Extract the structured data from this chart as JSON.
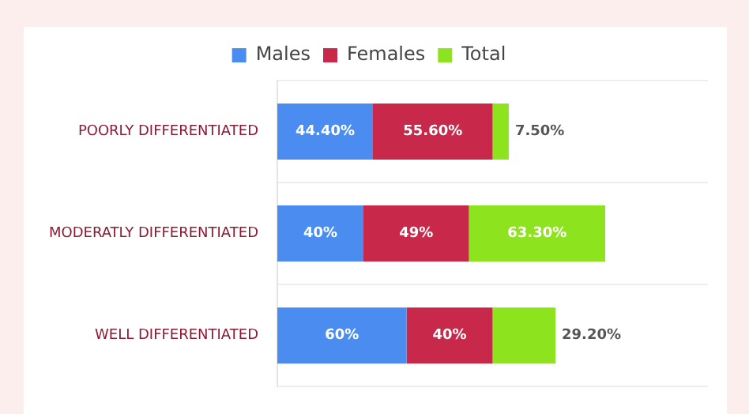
{
  "chart_data": {
    "type": "bar",
    "orientation": "horizontal",
    "stacked": true,
    "categories": [
      "POORLY DIFFERENTIATED",
      "MODERATLY DIFFERENTIATED",
      "WELL DIFFERENTIATED"
    ],
    "series": [
      {
        "name": "Males",
        "color": "#4a8cf0",
        "values": [
          44.4,
          40,
          60
        ],
        "value_labels": [
          "44.40%",
          "40%",
          "60%"
        ]
      },
      {
        "name": "Females",
        "color": "#c8284a",
        "values": [
          55.6,
          49,
          40
        ],
        "value_labels": [
          "55.60%",
          "49%",
          "40%"
        ]
      },
      {
        "name": "Total",
        "color": "#8ee31f",
        "values": [
          7.5,
          63.3,
          29.2
        ],
        "value_labels": [
          "7.50%",
          "63.30%",
          "29.20%"
        ]
      }
    ],
    "data_labels": true,
    "legend": "top",
    "grid": "y",
    "tick_labels": "y"
  }
}
